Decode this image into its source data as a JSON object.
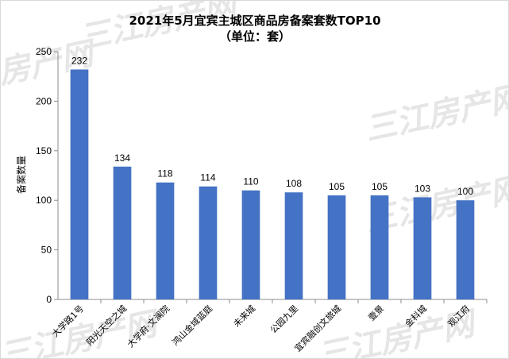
{
  "chart_data": {
    "type": "bar",
    "title": "2021年5月宜宾主城区商品房备案套数TOP10",
    "subtitle": "（单位：套）",
    "ylabel": "备案数量",
    "xlabel": "",
    "ylim": [
      0,
      250
    ],
    "yticks": [
      0,
      50,
      100,
      150,
      200,
      250
    ],
    "grid": false,
    "legend": "none",
    "bar_color": "#4472c4",
    "categories": [
      "大学路1号",
      "阳光天空之城",
      "大学府·文澜院",
      "鸿山金域蓝庭",
      "未来城",
      "公园九里",
      "宜宾融创文旅城",
      "壹景",
      "金科城",
      "观江府"
    ],
    "values": [
      232,
      134,
      118,
      114,
      110,
      108,
      105,
      105,
      103,
      100
    ]
  },
  "watermark": {
    "text": "三江房产网",
    "color": "#e6e6e6"
  }
}
